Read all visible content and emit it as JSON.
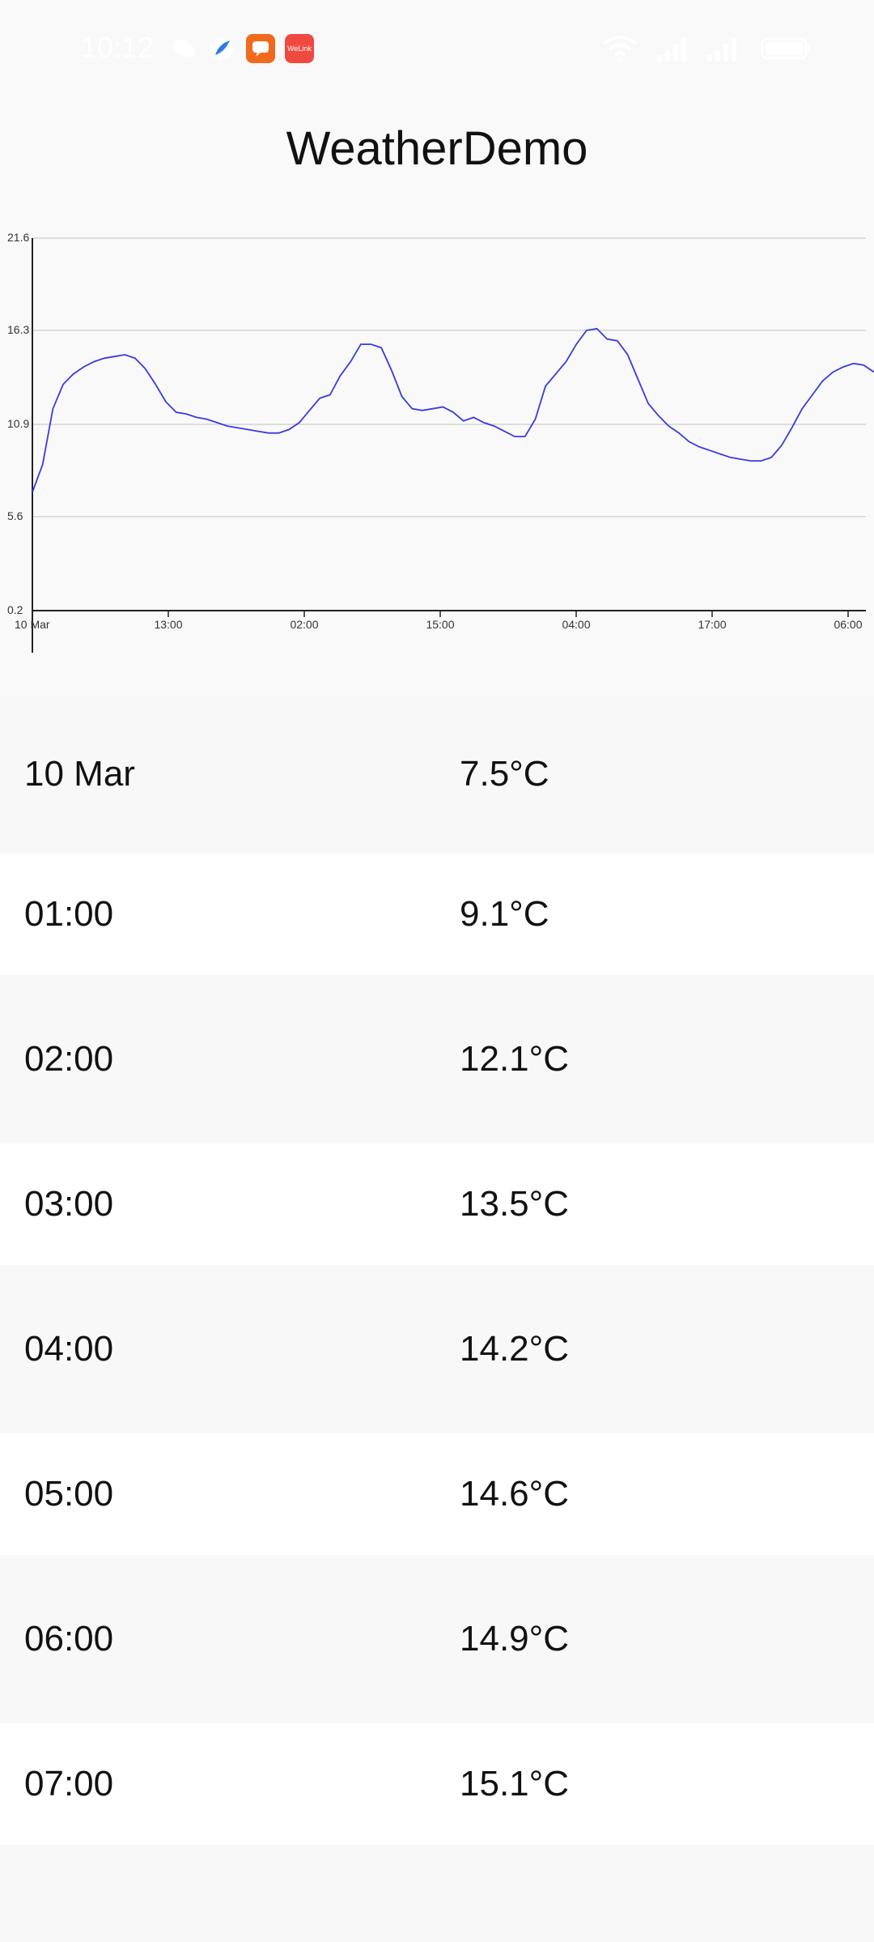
{
  "status_bar": {
    "time": "10:12",
    "icons": [
      "wechat-icon",
      "feather-app-icon",
      "chat-app-icon",
      "welink-app-icon",
      "wifi-icon",
      "signal-icon",
      "signal-icon",
      "battery-icon"
    ],
    "welink_label": "WeLink"
  },
  "app_title": "WeatherDemo",
  "chart_data": {
    "type": "line",
    "y_ticks": [
      "21.6",
      "16.3",
      "10.9",
      "5.6",
      "0.2"
    ],
    "x_ticks": [
      "10 Mar",
      "13:00",
      "02:00",
      "15:00",
      "04:00",
      "17:00",
      "06:00"
    ],
    "ylim": [
      0.2,
      21.6
    ],
    "grid": true,
    "line_color": "#3a3ae0",
    "series": [
      {
        "values": [
          7.0,
          8.6,
          11.8,
          13.2,
          13.8,
          14.2,
          14.5,
          14.7,
          14.8,
          14.9,
          14.7,
          14.1,
          13.2,
          12.2,
          11.6,
          11.5,
          11.3,
          11.2,
          11.0,
          10.8,
          10.7,
          10.6,
          10.5,
          10.4,
          10.4,
          10.6,
          11.0,
          11.7,
          12.4,
          12.6,
          13.7,
          14.5,
          15.5,
          15.5,
          15.3,
          14.0,
          12.5,
          11.8,
          11.7,
          11.8,
          11.9,
          11.6,
          11.1,
          11.3,
          11.0,
          10.8,
          10.5,
          10.2,
          10.2,
          11.2,
          13.1,
          13.8,
          14.5,
          15.5,
          16.3,
          16.4,
          15.8,
          15.7,
          14.9,
          13.5,
          12.1,
          11.4,
          10.8,
          10.4,
          9.9,
          9.6,
          9.4,
          9.2,
          9.0,
          8.9,
          8.8,
          8.8,
          9.0,
          9.7,
          10.7,
          11.8,
          12.6,
          13.4,
          13.9,
          14.2,
          14.4,
          14.3,
          13.9
        ]
      }
    ]
  },
  "list": {
    "rows": [
      {
        "time": "10 Mar",
        "temp": "7.5°C"
      },
      {
        "time": "01:00",
        "temp": "9.1°C"
      },
      {
        "time": "02:00",
        "temp": "12.1°C"
      },
      {
        "time": "03:00",
        "temp": "13.5°C"
      },
      {
        "time": "04:00",
        "temp": "14.2°C"
      },
      {
        "time": "05:00",
        "temp": "14.6°C"
      },
      {
        "time": "06:00",
        "temp": "14.9°C"
      },
      {
        "time": "07:00",
        "temp": "15.1°C"
      }
    ]
  }
}
